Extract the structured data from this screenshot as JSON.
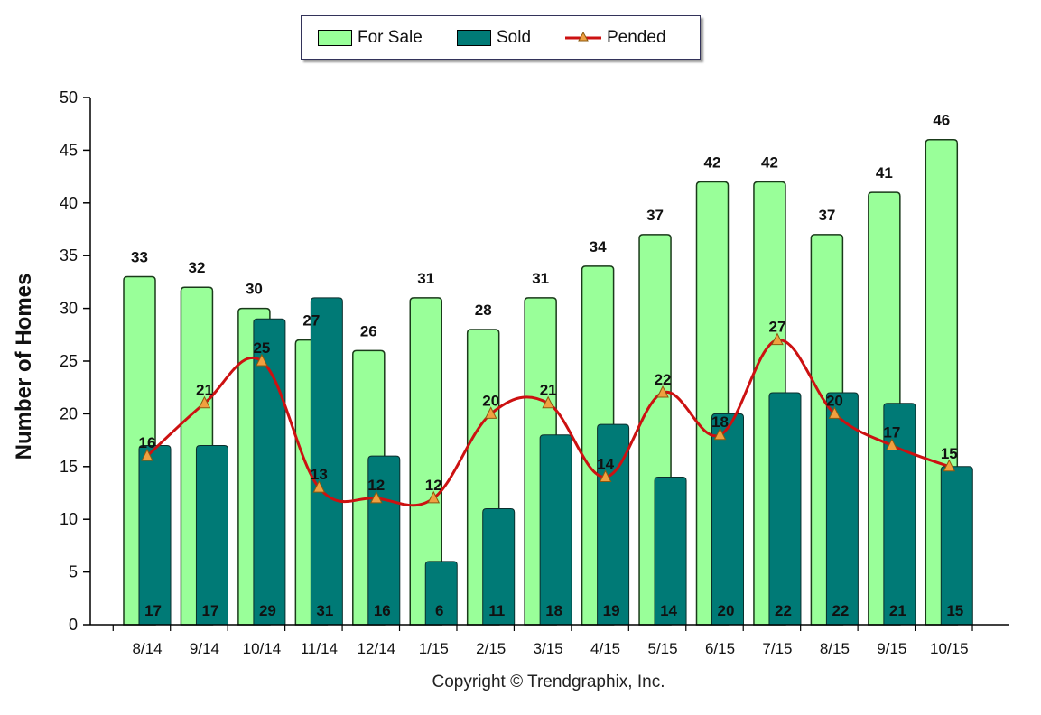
{
  "chart_data": {
    "type": "bar",
    "ylabel": "Number of Homes",
    "xlabel": "",
    "ylim": [
      0,
      50
    ],
    "yticks": [
      0,
      5,
      10,
      15,
      20,
      25,
      30,
      35,
      40,
      45,
      50
    ],
    "categories": [
      "8/14",
      "9/14",
      "10/14",
      "11/14",
      "12/14",
      "1/15",
      "2/15",
      "3/15",
      "4/15",
      "5/15",
      "6/15",
      "7/15",
      "8/15",
      "9/15",
      "10/15"
    ],
    "series": [
      {
        "name": "For Sale",
        "kind": "bar",
        "color": "#99ff99",
        "values": [
          33,
          32,
          30,
          27,
          26,
          31,
          28,
          31,
          34,
          37,
          42,
          42,
          37,
          41,
          46
        ]
      },
      {
        "name": "Sold",
        "kind": "bar",
        "color": "#007a76",
        "values": [
          17,
          17,
          29,
          31,
          16,
          6,
          11,
          18,
          19,
          14,
          20,
          22,
          22,
          21,
          15
        ]
      },
      {
        "name": "Pended",
        "kind": "line",
        "color": "#cc1111",
        "marker_color": "#f0a040",
        "values": [
          16,
          21,
          25,
          13,
          12,
          12,
          20,
          21,
          14,
          22,
          18,
          27,
          20,
          17,
          15
        ]
      }
    ],
    "legend_position": "top-center",
    "grid": false
  },
  "copyright": "Copyright © Trendgraphix, Inc."
}
